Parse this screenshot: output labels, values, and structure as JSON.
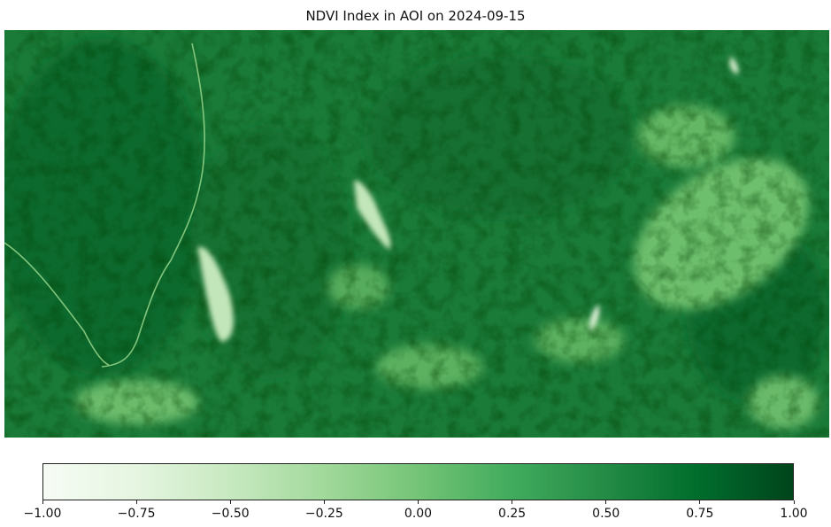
{
  "title": "NDVI Index in AOI on 2024-09-15",
  "colorbar": {
    "colormap": "Greens",
    "min": -1.0,
    "max": 1.0,
    "ticks": [
      {
        "value": -1.0,
        "label": "−1.00"
      },
      {
        "value": -0.75,
        "label": "−0.75"
      },
      {
        "value": -0.5,
        "label": "−0.50"
      },
      {
        "value": -0.25,
        "label": "−0.25"
      },
      {
        "value": 0.0,
        "label": "0.00"
      },
      {
        "value": 0.25,
        "label": "0.25"
      },
      {
        "value": 0.5,
        "label": "0.50"
      },
      {
        "value": 0.75,
        "label": "0.75"
      },
      {
        "value": 1.0,
        "label": "1.00"
      }
    ],
    "colors": [
      "#f7fcf5",
      "#e5f5e0",
      "#c7e9c0",
      "#a1d99b",
      "#74c476",
      "#41ab5d",
      "#238b45",
      "#006d2c",
      "#00441b"
    ]
  }
}
